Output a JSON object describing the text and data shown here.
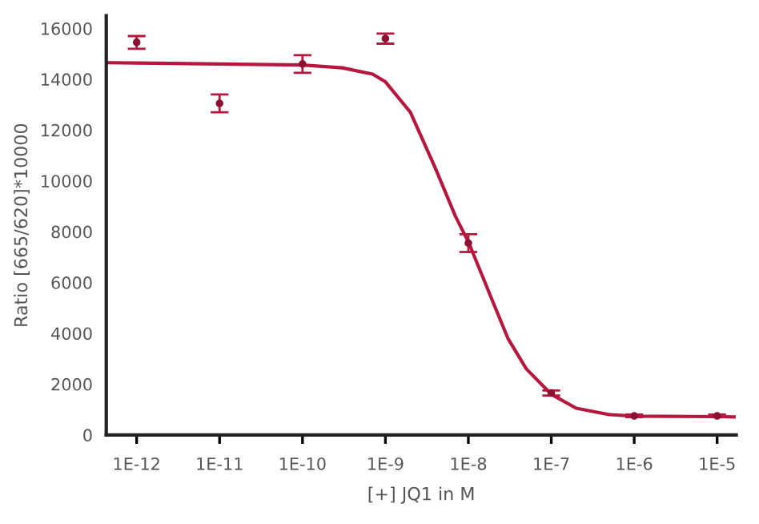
{
  "chart_data": {
    "type": "scatter",
    "xlabel": "[+] JQ1 in M",
    "ylabel": "Ratio [665/620]*10000",
    "log": "x",
    "xlim": [
      4.3e-13,
      1.7e-05
    ],
    "ylim": [
      0,
      16500
    ],
    "xticks": [
      {
        "value": 1e-12,
        "label": "1E-12"
      },
      {
        "value": 1e-11,
        "label": "1E-11"
      },
      {
        "value": 1e-10,
        "label": "1E-10"
      },
      {
        "value": 1e-09,
        "label": "1E-9"
      },
      {
        "value": 1e-08,
        "label": "1E-8"
      },
      {
        "value": 1e-07,
        "label": "1E-7"
      },
      {
        "value": 1e-06,
        "label": "1E-6"
      },
      {
        "value": 1e-05,
        "label": "1E-5"
      }
    ],
    "yticks": [
      0,
      2000,
      4000,
      6000,
      8000,
      10000,
      12000,
      14000,
      16000
    ],
    "grid": false,
    "series": [
      {
        "type": "line",
        "color": "#b5173f",
        "marker": "none",
        "line_style": "solid",
        "x": [
          4.5e-13,
          1e-12,
          1e-11,
          1e-10,
          3e-10,
          7e-10,
          1e-09,
          2e-09,
          4e-09,
          7e-09,
          1e-08,
          1.5e-08,
          2e-08,
          3e-08,
          5e-08,
          1e-07,
          2e-07,
          5e-07,
          1e-06,
          1e-05,
          1.6e-05
        ],
        "values": [
          14650,
          14640,
          14600,
          14560,
          14450,
          14200,
          13900,
          12700,
          10500,
          8600,
          7600,
          6200,
          5200,
          3800,
          2600,
          1600,
          1050,
          800,
          740,
          720,
          710
        ]
      },
      {
        "color": "#8c1030",
        "marker": "circle",
        "x": [
          1e-12,
          1e-11,
          1e-10,
          1e-09,
          1e-08,
          1e-07,
          1e-06,
          1e-05
        ],
        "values": [
          15450,
          13050,
          14600,
          15600,
          7550,
          1650,
          750,
          750
        ],
        "errors": [
          250,
          350,
          350,
          200,
          350,
          100,
          50,
          50
        ]
      }
    ]
  }
}
